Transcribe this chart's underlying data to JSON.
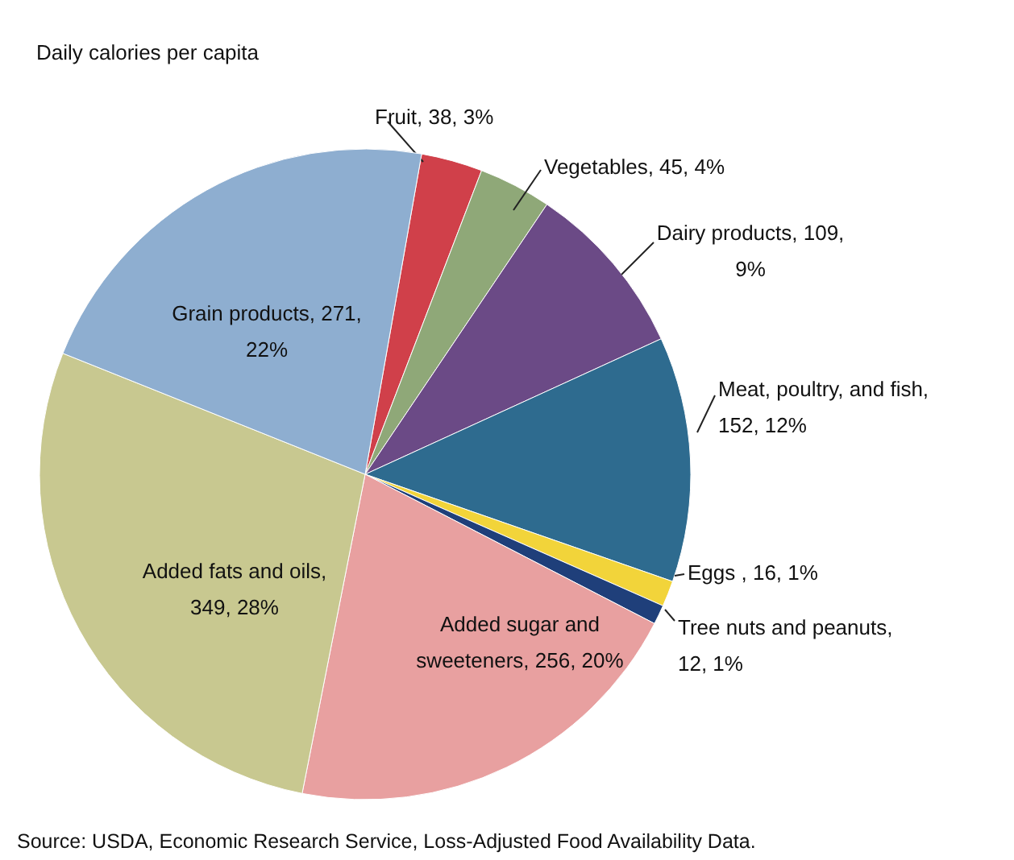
{
  "chart_data": {
    "type": "pie",
    "title": "Daily calories per capita",
    "categories": [
      "Fruit, 38, 3%",
      "Vegetables, 45, 4%",
      "Dairy products, 109, 9%",
      "Meat, poultry, and fish, 152, 12%",
      "Eggs , 16, 1%",
      "Tree nuts and peanuts, 12, 1%",
      "Added sugar and sweeteners, 256, 20%",
      "Added fats and oils, 349, 28%",
      "Grain products, 271, 22%"
    ],
    "values": [
      38,
      45,
      109,
      152,
      16,
      12,
      256,
      349,
      271
    ],
    "colors": [
      "#d0404a",
      "#8fa878",
      "#6b4a86",
      "#2e6b8f",
      "#f2d43a",
      "#1f3f7a",
      "#e8a0a0",
      "#c8c890",
      "#8eaed0"
    ],
    "annotations": [
      "Source: USDA, Economic Research Service, Loss-Adjusted Food Availability Data."
    ]
  }
}
